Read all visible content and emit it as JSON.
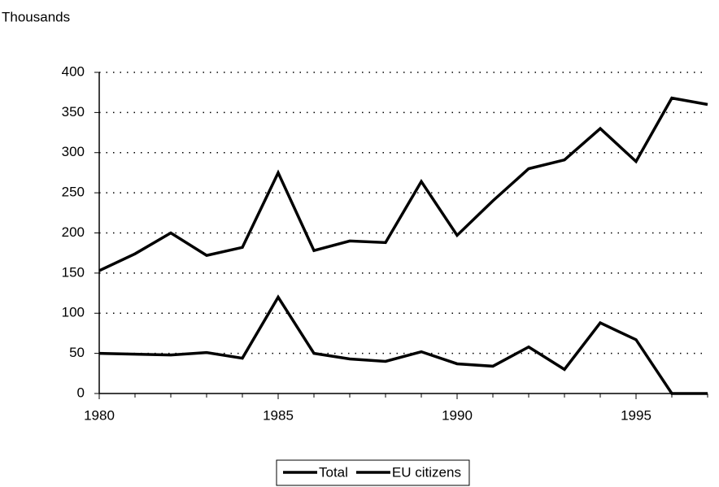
{
  "chart_data": {
    "type": "line",
    "y_axis_label": "Thousands",
    "x": [
      1980,
      1981,
      1982,
      1983,
      1984,
      1985,
      1986,
      1987,
      1988,
      1989,
      1990,
      1991,
      1992,
      1993,
      1994,
      1995,
      1996,
      1997
    ],
    "series": [
      {
        "name": "Total",
        "color": "#000000",
        "values": [
          153,
          174,
          200,
          172,
          182,
          275,
          178,
          190,
          188,
          264,
          197,
          240,
          280,
          291,
          330,
          289,
          368,
          360
        ]
      },
      {
        "name": "EU citizens",
        "color": "#000000",
        "values": [
          50,
          49,
          48,
          51,
          44,
          120,
          50,
          43,
          40,
          52,
          37,
          34,
          58,
          30,
          88,
          67,
          0,
          0
        ]
      }
    ],
    "xlim": [
      1980,
      1997
    ],
    "xticks": [
      1980,
      1985,
      1990,
      1995
    ],
    "ylim": [
      0,
      400
    ],
    "yticks": [
      0,
      50,
      100,
      150,
      200,
      250,
      300,
      350,
      400
    ],
    "grid": true,
    "legend": "bottom"
  }
}
